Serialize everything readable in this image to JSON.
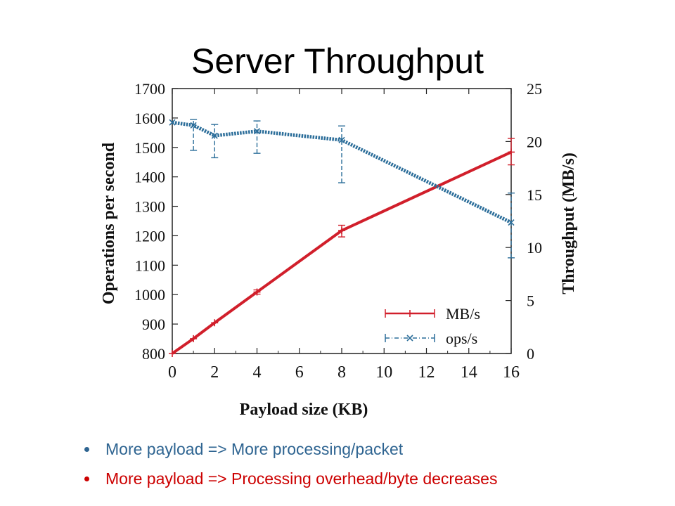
{
  "slide": {
    "title": "Server Throughput",
    "bullets": [
      {
        "text": "More payload => More processing/packet",
        "color": "#2e6491"
      },
      {
        "text": "More payload => Processing overhead/byte decreases",
        "color": "#cc0000"
      }
    ]
  },
  "chart_data": {
    "type": "line",
    "title": "",
    "xlabel": "Payload size (KB)",
    "ylabel": "Operations per second",
    "y2label": "Throughput (MB/s)",
    "xlim": [
      0,
      16
    ],
    "ylim": [
      800,
      1700
    ],
    "y2lim": [
      0,
      25
    ],
    "x_ticks": [
      "0",
      "2",
      "4",
      "6",
      "8",
      "10",
      "12",
      "14",
      "16"
    ],
    "y_ticks": [
      "800",
      "900",
      "1000",
      "1100",
      "1200",
      "1300",
      "1400",
      "1500",
      "1600",
      "1700"
    ],
    "y2_ticks": [
      "0",
      "5",
      "10",
      "15",
      "20",
      "25"
    ],
    "grid": false,
    "legend_position": "bottom-right",
    "series": [
      {
        "name": "MB/s",
        "axis": "right",
        "color": "#d11f2b",
        "style": "solid",
        "marker": "+",
        "x": [
          0,
          1,
          2,
          4,
          8,
          16
        ],
        "y": [
          0,
          1.4,
          2.9,
          5.8,
          11.6,
          19.0
        ],
        "err_low": [
          0,
          1.4,
          2.9,
          5.6,
          11.0,
          17.8
        ],
        "err_high": [
          0,
          1.4,
          2.9,
          6.0,
          12.1,
          20.3
        ]
      },
      {
        "name": "ops/s",
        "axis": "left",
        "color": "#2c6e9a",
        "style": "dotted",
        "marker": "x",
        "x": [
          0,
          1,
          2,
          4,
          8,
          16
        ],
        "y": [
          1585,
          1575,
          1540,
          1555,
          1525,
          1245
        ],
        "err_low": [
          1585,
          1490,
          1465,
          1480,
          1380,
          1125
        ],
        "err_high": [
          1585,
          1595,
          1578,
          1590,
          1573,
          1345
        ]
      }
    ]
  }
}
